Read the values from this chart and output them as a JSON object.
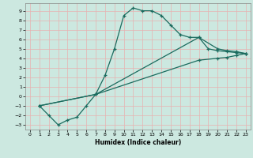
{
  "xlabel": "Humidex (Indice chaleur)",
  "xlim": [
    -0.5,
    23.5
  ],
  "ylim": [
    -3.5,
    9.8
  ],
  "yticks": [
    -3,
    -2,
    -1,
    0,
    1,
    2,
    3,
    4,
    5,
    6,
    7,
    8,
    9
  ],
  "xticks": [
    0,
    1,
    2,
    3,
    4,
    5,
    6,
    7,
    8,
    9,
    10,
    11,
    12,
    13,
    14,
    15,
    16,
    17,
    18,
    19,
    20,
    21,
    22,
    23
  ],
  "line_color": "#1a6b5e",
  "bg_color": "#cce8e0",
  "grid_color": "#e8b0b0",
  "line1_x": [
    1,
    2,
    3,
    4,
    5,
    6,
    7,
    8,
    9,
    10,
    11,
    12,
    13,
    14,
    15,
    16,
    17,
    18,
    19,
    20,
    21,
    22,
    23
  ],
  "line1_y": [
    -1,
    -2,
    -3,
    -2.5,
    -2.2,
    -1.0,
    0.2,
    2.2,
    5.0,
    8.5,
    9.3,
    9.0,
    9.0,
    8.5,
    7.5,
    6.5,
    6.2,
    6.2,
    5.0,
    4.8,
    4.7,
    4.6,
    4.5
  ],
  "line2_x": [
    1,
    7,
    18,
    20,
    21,
    22,
    23
  ],
  "line2_y": [
    -1,
    0.2,
    6.2,
    5.0,
    4.8,
    4.7,
    4.5
  ],
  "line3_x": [
    1,
    7,
    18,
    20,
    21,
    22,
    23
  ],
  "line3_y": [
    -1,
    0.2,
    3.8,
    4.0,
    4.1,
    4.3,
    4.5
  ]
}
